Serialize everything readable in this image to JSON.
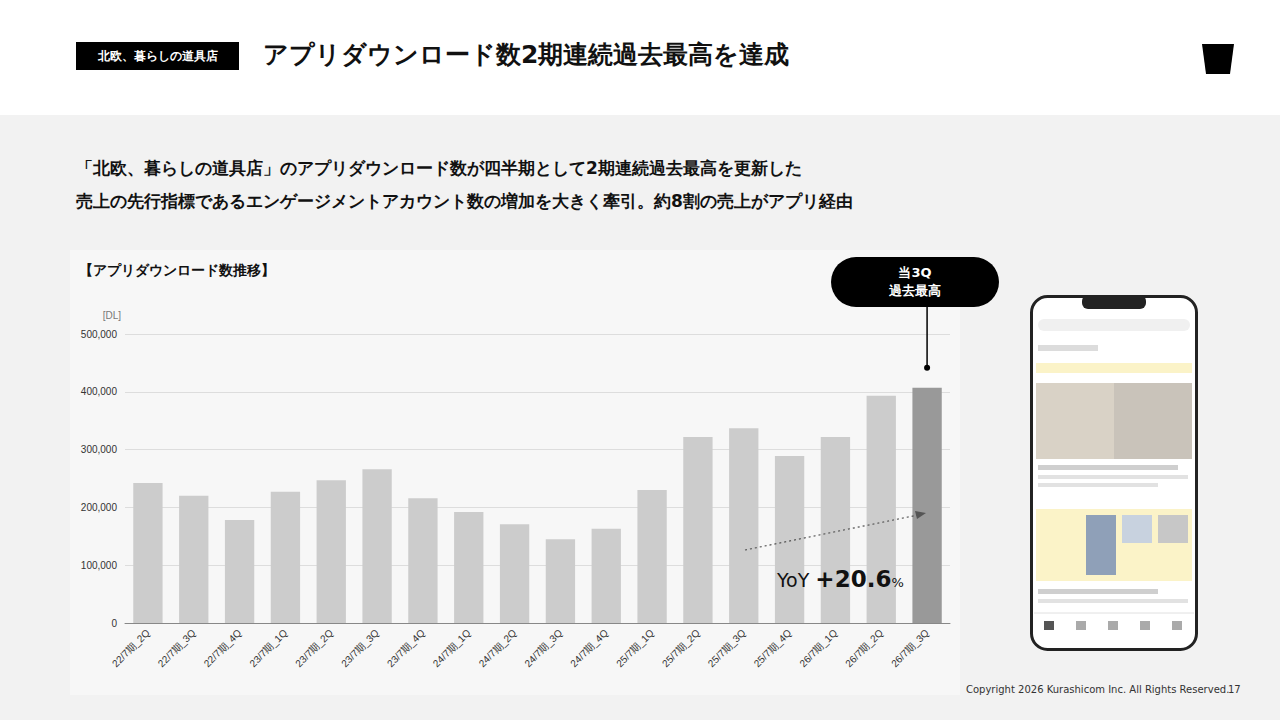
{
  "slide": {
    "tag": "北欧、暮らしの道具店",
    "title": "アプリダウンロード数2期連続過去最高を達成",
    "lead": [
      "「北欧、暮らしの道具店」のアプリダウンロード数が四半期として2期連続過去最高を更新した",
      "売上の先行指標であるエンゲージメントアカウント数の増加を大きく牽引。約8割の売上がアプリ経由"
    ],
    "copyright": "Copyright 2026 Kurashicom Inc. All Rights Reserved.",
    "page": 17
  },
  "chart_data": {
    "type": "bar",
    "title": "【アプリダウンロード数推移】",
    "y_label": "[DL]",
    "categories": [
      "22/7期_2Q",
      "22/7期_3Q",
      "22/7期_4Q",
      "23/7期_1Q",
      "23/7期_2Q",
      "23/7期_3Q",
      "23/7期_4Q",
      "24/7期_1Q",
      "24/7期_2Q",
      "24/7期_3Q",
      "24/7期_4Q",
      "25/7期_1Q",
      "25/7期_2Q",
      "25/7期_3Q",
      "25/7期_4Q",
      "26/7期_1Q",
      "26/7期_2Q",
      "26/7期_3Q"
    ],
    "values": [
      242000,
      220000,
      178000,
      227000,
      247000,
      266000,
      216000,
      192000,
      171000,
      145000,
      163000,
      230000,
      322000,
      337000,
      289000,
      322000,
      393000,
      407000
    ],
    "colors": [
      "#cccccc",
      "#cccccc",
      "#cccccc",
      "#cccccc",
      "#cccccc",
      "#cccccc",
      "#cccccc",
      "#cccccc",
      "#cccccc",
      "#cccccc",
      "#cccccc",
      "#cccccc",
      "#cccccc",
      "#cccccc",
      "#cccccc",
      "#cccccc",
      "#cccccc",
      "#999999"
    ],
    "ylim": [
      0,
      500000
    ],
    "yticks": [
      0,
      {
        "value": 100000,
        "label": "100,000"
      },
      {
        "value": 200000,
        "label": "200,000"
      },
      {
        "value": 300000,
        "label": "300,000"
      },
      {
        "value": 400000,
        "label": "400,000"
      },
      {
        "value": 500000,
        "label": "500,000"
      }
    ],
    "grid": true,
    "annotations": {
      "callout": [
        "当3Q",
        "過去最高"
      ],
      "yoy": "YoY +20.6%"
    }
  }
}
